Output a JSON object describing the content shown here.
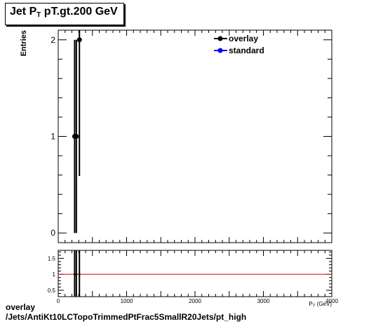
{
  "title": {
    "main": "Jet P",
    "sub": "T",
    "rest": " pT.gt.200 GeV"
  },
  "footer": {
    "line1": "overlay",
    "line2": "/Jets/AntiKt10LCTopoTrimmedPtFrac5SmallR20Jets/pt_high"
  },
  "chart_data": [
    {
      "type": "scatter",
      "ylabel": "Entries",
      "xlabel": "P_{T} (GeV)",
      "xlim": [
        0,
        4000
      ],
      "ylim": [
        -0.1,
        2.1
      ],
      "xticks": [
        "0",
        "1000",
        "2000",
        "3000",
        "4000"
      ],
      "yticks": [
        "0",
        "1",
        "2"
      ],
      "grid": false,
      "legend": "top-right",
      "series": [
        {
          "name": "overlay",
          "color": "#000000",
          "marker": "circle",
          "points": [
            {
              "x": 240,
              "y": 1,
              "err": 1
            },
            {
              "x": 265,
              "y": 1,
              "err": 1
            },
            {
              "x": 310,
              "y": 2,
              "err": 1.41
            }
          ]
        },
        {
          "name": "standard",
          "color": "#0000ff",
          "marker": "circle",
          "points": []
        }
      ]
    },
    {
      "type": "line",
      "xlim": [
        0,
        4000
      ],
      "ylim": [
        0.3,
        1.75
      ],
      "xticks": [
        "0",
        "1000",
        "2000",
        "3000",
        "4000"
      ],
      "yticks": [
        "0.5",
        "1",
        "1.5"
      ],
      "reference_line": {
        "y": 1,
        "color": "#cc0000"
      },
      "series": [
        {
          "name": "overlay",
          "color": "#000000",
          "points": [
            {
              "x": 240,
              "y": 1,
              "err": 1
            },
            {
              "x": 265,
              "y": 1,
              "err": 1
            },
            {
              "x": 310,
              "y": 1,
              "err": 1
            }
          ]
        }
      ]
    }
  ]
}
